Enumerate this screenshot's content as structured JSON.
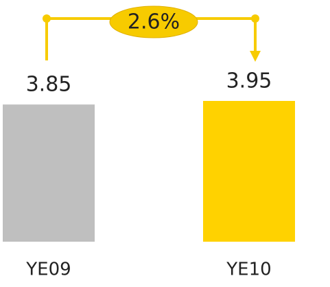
{
  "chart_data": {
    "type": "bar",
    "categories": [
      "YE09",
      "YE10"
    ],
    "values": [
      3.85,
      3.95
    ],
    "colors": [
      "#bfbfbf",
      "#ffd200"
    ],
    "annotation": "2.6%",
    "annotation_color": "#f7cb00"
  }
}
